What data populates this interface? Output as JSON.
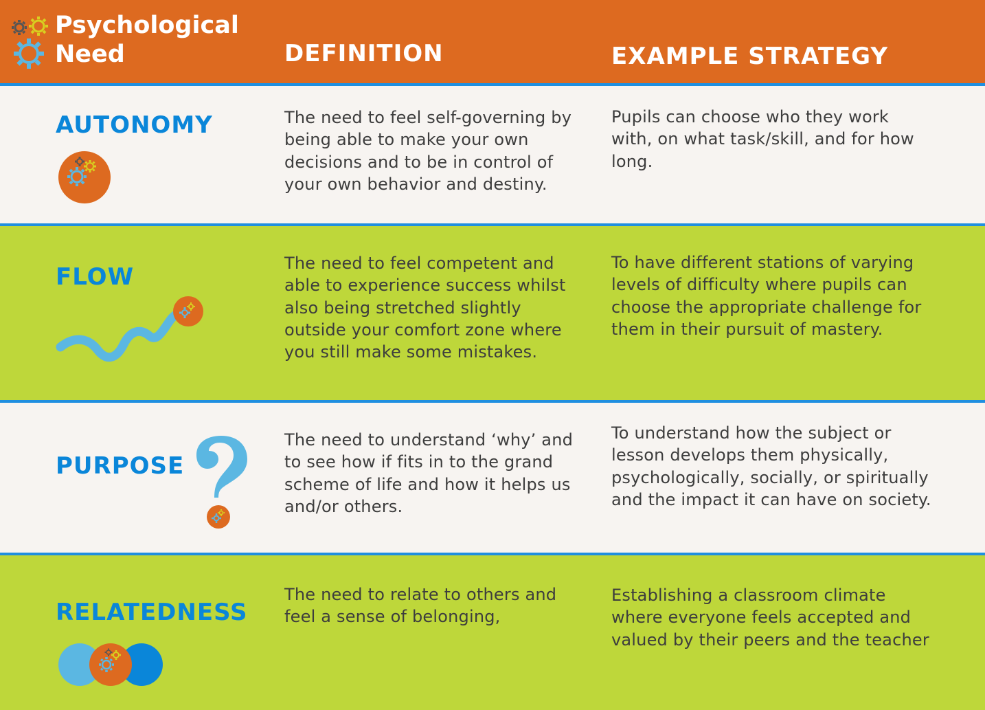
{
  "header": {
    "need_title_line1": "Psychological",
    "need_title_line2": "Need",
    "definition_title": "DEFINITION",
    "example_title": "EXAMPLE STRATEGY"
  },
  "rows": [
    {
      "name": "AUTONOMY",
      "definition": "The need to feel self-governing by being able to make your own decisions and to be in control of your own behavior and destiny.",
      "example": "Pupils can choose who they work with, on what task/skill, and for how long.",
      "icon": "gears-in-orange-circle-icon"
    },
    {
      "name": "FLOW",
      "definition": "The need to feel competent and able to experience success whilst also being stretched slightly outside your comfort zone where you still make some mistakes.",
      "example": "To have different stations of varying levels of difficulty where pupils can choose the appropriate challenge for them in their pursuit of mastery.",
      "icon": "wavy-path-with-gear-icon"
    },
    {
      "name": "PURPOSE",
      "definition": "The need to understand ‘why’ and to see how if fits in to the grand scheme of life and how it helps us and/or others.",
      "example": "To understand how the subject or lesson develops them physically, psychologically, socially, or spiritually and the impact it can have on society.",
      "icon": "question-mark-gear-icon"
    },
    {
      "name": "RELATEDNESS",
      "definition": "The need to relate to others and feel a sense of belonging,",
      "example": "Establishing a classroom climate where everyone feels accepted and valued by their peers and the teacher",
      "icon": "overlapping-circles-gear-icon"
    }
  ],
  "colors": {
    "header_orange": "#dd6a20",
    "rule_blue": "#1f8fe0",
    "label_blue": "#0a86d9",
    "row_light": "#f7f4f1",
    "row_green": "#bed73a",
    "icon_light_blue": "#5bb7e2",
    "icon_gear_yellow": "#d8d020",
    "icon_gear_dark": "#555555"
  }
}
